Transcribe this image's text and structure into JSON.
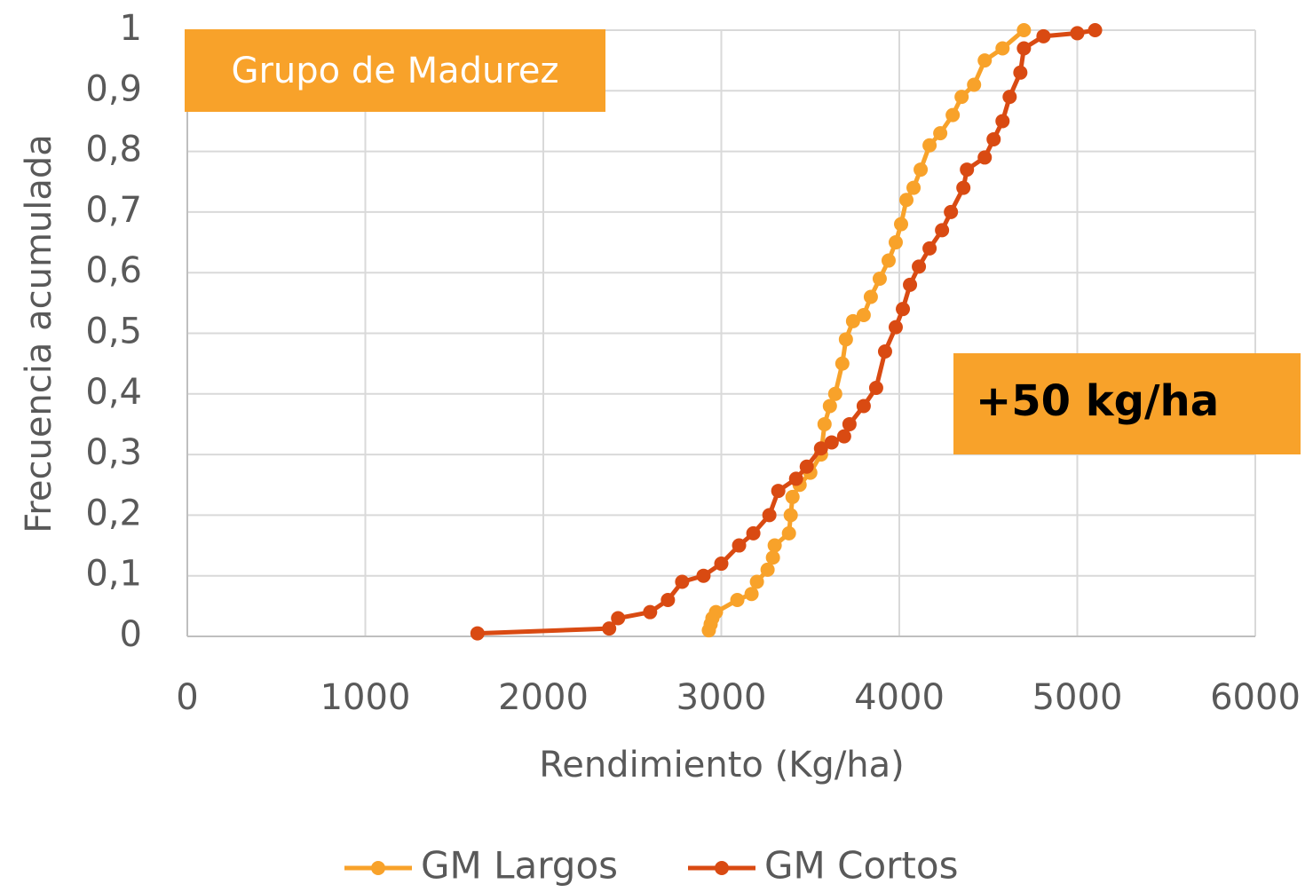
{
  "chart_data": {
    "type": "line",
    "xlabel": "Rendimiento (Kg/ha)",
    "ylabel": "Frecuencia acumulada",
    "xlim": [
      0,
      6000
    ],
    "xticks": [
      0,
      1000,
      2000,
      3000,
      4000,
      5000,
      6000
    ],
    "ylim": [
      0,
      1
    ],
    "yticks": [
      0,
      {
        "value": 0.1,
        "label": "0,1"
      },
      {
        "value": 0.2,
        "label": "0,2"
      },
      {
        "value": 0.3,
        "label": "0,3"
      },
      {
        "value": 0.4,
        "label": "0,4"
      },
      {
        "value": 0.5,
        "label": "0,5"
      },
      {
        "value": 0.6,
        "label": "0,6"
      },
      {
        "value": 0.7,
        "label": "0,7"
      },
      {
        "value": 0.8,
        "label": "0,8"
      },
      {
        "value": 0.9,
        "label": "0,9"
      },
      1
    ],
    "grid": true,
    "legend": "bottom",
    "annotations": [
      "Grupo de Madurez",
      "+50 kg/ha"
    ],
    "series": [
      {
        "name": "GM Largos",
        "color": "#F8A22A",
        "x": [
          2930,
          2940,
          2950,
          2970,
          3090,
          3170,
          3200,
          3260,
          3290,
          3300,
          3380,
          3390,
          3400,
          3440,
          3500,
          3560,
          3580,
          3610,
          3640,
          3680,
          3700,
          3740,
          3800,
          3840,
          3890,
          3940,
          3980,
          4010,
          4040,
          4080,
          4120,
          4170,
          4230,
          4300,
          4350,
          4420,
          4480,
          4580,
          4700
        ],
        "values": [
          0.01,
          0.02,
          0.03,
          0.04,
          0.06,
          0.07,
          0.09,
          0.11,
          0.13,
          0.15,
          0.17,
          0.2,
          0.23,
          0.25,
          0.27,
          0.3,
          0.35,
          0.38,
          0.4,
          0.45,
          0.49,
          0.52,
          0.53,
          0.56,
          0.59,
          0.62,
          0.65,
          0.68,
          0.72,
          0.74,
          0.77,
          0.81,
          0.83,
          0.86,
          0.89,
          0.91,
          0.95,
          0.97,
          1
        ]
      },
      {
        "name": "GM Cortos",
        "color": "#D94A12",
        "x": [
          1630,
          2370,
          2420,
          2600,
          2700,
          2780,
          2900,
          3000,
          3100,
          3180,
          3270,
          3320,
          3420,
          3480,
          3560,
          3620,
          3690,
          3720,
          3800,
          3870,
          3920,
          3980,
          4020,
          4060,
          4110,
          4170,
          4240,
          4290,
          4360,
          4380,
          4480,
          4530,
          4580,
          4620,
          4680,
          4700,
          4810,
          5000,
          5100
        ],
        "values": [
          0.005,
          0.013,
          0.03,
          0.04,
          0.06,
          0.09,
          0.1,
          0.12,
          0.15,
          0.17,
          0.2,
          0.24,
          0.26,
          0.28,
          0.31,
          0.32,
          0.33,
          0.35,
          0.38,
          0.41,
          0.47,
          0.51,
          0.54,
          0.58,
          0.61,
          0.64,
          0.67,
          0.7,
          0.74,
          0.77,
          0.79,
          0.82,
          0.85,
          0.89,
          0.93,
          0.97,
          0.99,
          0.995,
          1
        ]
      }
    ]
  }
}
